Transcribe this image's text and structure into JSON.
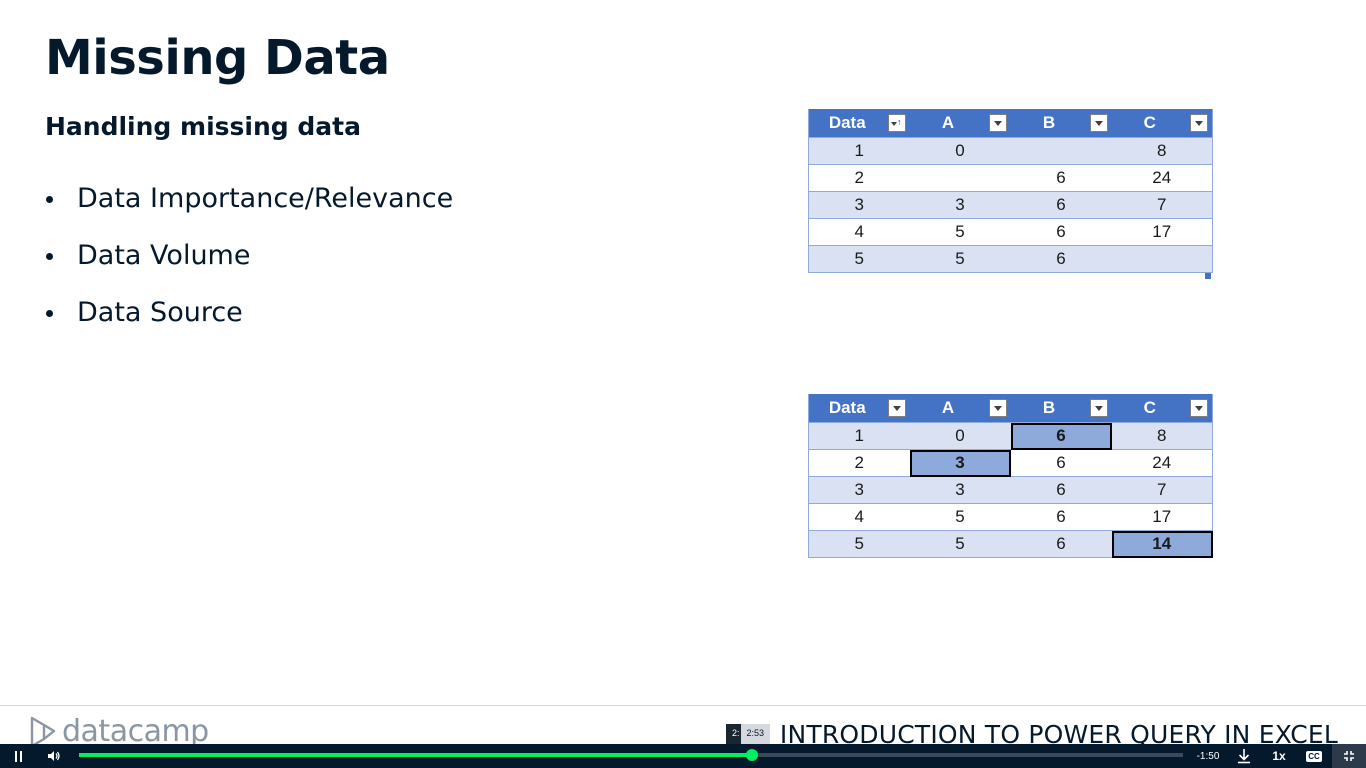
{
  "slide": {
    "title": "Missing Data",
    "subtitle": "Handling missing data",
    "bullets": [
      "Data Importance/Relevance",
      "Data Volume",
      "Data Source"
    ]
  },
  "table_top": {
    "headers": [
      "Data",
      "A",
      "B",
      "C"
    ],
    "rows": [
      [
        "1",
        "0",
        "",
        "8"
      ],
      [
        "2",
        "",
        "6",
        "24"
      ],
      [
        "3",
        "3",
        "6",
        "7"
      ],
      [
        "4",
        "5",
        "6",
        "17"
      ],
      [
        "5",
        "5",
        "6",
        ""
      ]
    ]
  },
  "table_bottom": {
    "headers": [
      "Data",
      "A",
      "B",
      "C"
    ],
    "rows": [
      [
        "1",
        "0",
        "6",
        "8"
      ],
      [
        "2",
        "3",
        "6",
        "24"
      ],
      [
        "3",
        "3",
        "6",
        "7"
      ],
      [
        "4",
        "5",
        "6",
        "17"
      ],
      [
        "5",
        "5",
        "6",
        "14"
      ]
    ]
  },
  "footer": {
    "brand": "datacamp",
    "course_title": "INTRODUCTION TO POWER QUERY IN EXCEL"
  },
  "player": {
    "hover_time_prev": "2:",
    "hover_time": "2:53",
    "remaining": "-1:50",
    "speed": "1x",
    "cc_label": "CC",
    "progress_fraction": 0.61,
    "accent_color": "#03ef62",
    "icons": [
      "pause-icon",
      "volume-icon",
      "download-icon",
      "captions-icon",
      "exit-fullscreen-icon"
    ]
  }
}
